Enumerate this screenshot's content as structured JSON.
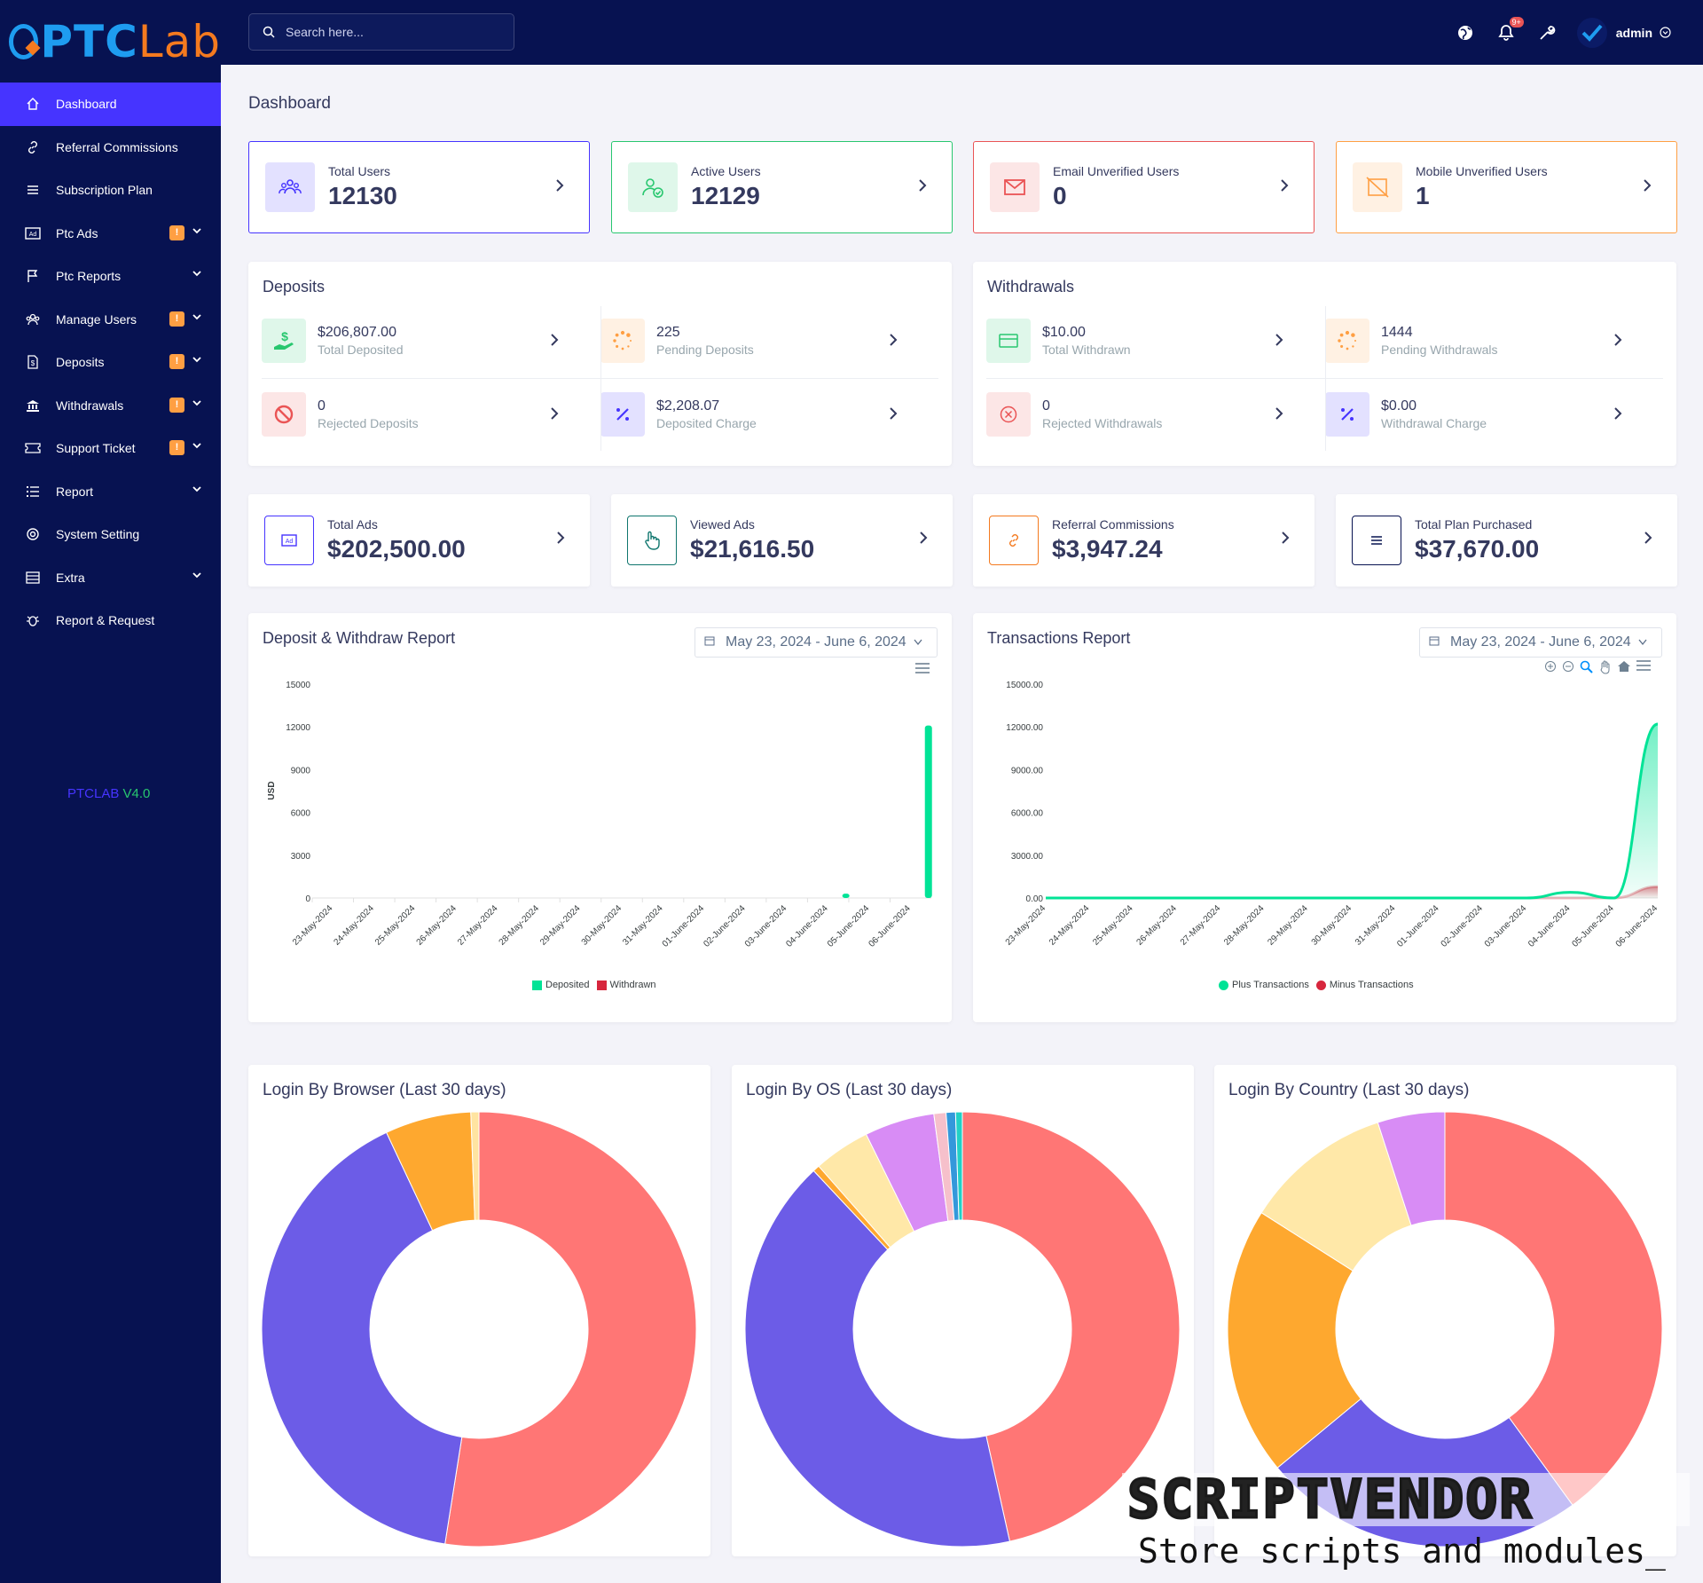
{
  "brand": {
    "logo_a": "PTC",
    "logo_b": "Lab",
    "version_a": "PTCLAB",
    "version_b": "V4.0"
  },
  "colors": {
    "sidebar": "#071251",
    "accent": "#4634ff",
    "success": "#28c76f",
    "danger": "#ea5455",
    "warning": "#ff9f43",
    "deposit_green": "#00e396",
    "withdraw_red": "#d7263d"
  },
  "sidebar": {
    "items": [
      {
        "label": "Dashboard",
        "icon": "home-icon",
        "badge": false,
        "dropdown": false,
        "active": true
      },
      {
        "label": "Referral Commissions",
        "icon": "link-icon",
        "badge": false,
        "dropdown": false
      },
      {
        "label": "Subscription Plan",
        "icon": "list-icon",
        "badge": false,
        "dropdown": false
      },
      {
        "label": "Ptc Ads",
        "icon": "ad-icon",
        "badge": true,
        "dropdown": true
      },
      {
        "label": "Ptc Reports",
        "icon": "flag-icon",
        "badge": false,
        "dropdown": true
      },
      {
        "label": "Manage Users",
        "icon": "users-icon",
        "badge": true,
        "dropdown": true
      },
      {
        "label": "Deposits",
        "icon": "deposit-icon",
        "badge": true,
        "dropdown": true
      },
      {
        "label": "Withdrawals",
        "icon": "bank-icon",
        "badge": true,
        "dropdown": true
      },
      {
        "label": "Support Ticket",
        "icon": "ticket-icon",
        "badge": true,
        "dropdown": true
      },
      {
        "label": "Report",
        "icon": "report-icon",
        "badge": false,
        "dropdown": true
      },
      {
        "label": "System Setting",
        "icon": "settings-icon",
        "badge": false,
        "dropdown": false
      },
      {
        "label": "Extra",
        "icon": "server-icon",
        "badge": false,
        "dropdown": true
      },
      {
        "label": "Report & Request",
        "icon": "bug-icon",
        "badge": false,
        "dropdown": false
      }
    ],
    "badge_text": "!"
  },
  "header": {
    "search_placeholder": "Search here...",
    "notification_count": "9+",
    "user": "admin"
  },
  "page": {
    "title": "Dashboard"
  },
  "widgets": [
    {
      "title": "Total Users",
      "value": "12130",
      "icon": "users-group-icon",
      "color": "#4634ff"
    },
    {
      "title": "Active Users",
      "value": "12129",
      "icon": "user-check-icon",
      "color": "#28c76f"
    },
    {
      "title": "Email Unverified Users",
      "value": "0",
      "icon": "envelope-icon",
      "color": "#ea5455"
    },
    {
      "title": "Mobile Unverified Users",
      "value": "1",
      "icon": "mobile-off-icon",
      "color": "#ff9f43"
    }
  ],
  "deposits": {
    "title": "Deposits",
    "stats": [
      {
        "value": "$206,807.00",
        "label": "Total Deposited",
        "icon": "hand-money-icon",
        "color": "#28c76f"
      },
      {
        "value": "225",
        "label": "Pending Deposits",
        "icon": "spinner-icon",
        "color": "#ff9f43"
      },
      {
        "value": "0",
        "label": "Rejected Deposits",
        "icon": "ban-icon",
        "color": "#ea5455"
      },
      {
        "value": "$2,208.07",
        "label": "Deposited Charge",
        "icon": "percent-icon",
        "color": "#4634ff"
      }
    ]
  },
  "withdrawals": {
    "title": "Withdrawals",
    "stats": [
      {
        "value": "$10.00",
        "label": "Total Withdrawn",
        "icon": "credit-card-icon",
        "color": "#28c76f"
      },
      {
        "value": "1444",
        "label": "Pending Withdrawals",
        "icon": "spinner-icon",
        "color": "#ff9f43"
      },
      {
        "value": "0",
        "label": "Rejected Withdrawals",
        "icon": "times-circle-icon",
        "color": "#ea5455"
      },
      {
        "value": "$0.00",
        "label": "Withdrawal Charge",
        "icon": "percent-icon",
        "color": "#4634ff"
      }
    ]
  },
  "widgets2": [
    {
      "title": "Total Ads",
      "value": "$202,500.00",
      "icon": "ad-icon",
      "color": "#4634ff"
    },
    {
      "title": "Viewed Ads",
      "value": "$21,616.50",
      "icon": "hand-pointer-icon",
      "color": "#0f766e"
    },
    {
      "title": "Referral Commissions",
      "value": "$3,947.24",
      "icon": "link-icon",
      "color": "#f47a1f"
    },
    {
      "title": "Total Plan Purchased",
      "value": "$37,670.00",
      "icon": "list-icon",
      "color": "#071251"
    }
  ],
  "deposit_report": {
    "title": "Deposit & Withdraw Report",
    "date_range": "May 23, 2024 - June 6, 2024"
  },
  "transactions_report": {
    "title": "Transactions Report",
    "date_range": "May 23, 2024 - June 6, 2024"
  },
  "pies": {
    "browser_title": "Login By Browser (Last 30 days)",
    "os_title": "Login By OS (Last 30 days)",
    "country_title": "Login By Country (Last 30 days)"
  },
  "watermark": {
    "title": "SCRIPTVENDOR",
    "subtitle": "Store scripts and modules_"
  },
  "chart_data": [
    {
      "type": "bar",
      "ylabel": "USD",
      "ylim": [
        0,
        15000
      ],
      "yticks": [
        "15000",
        "12000",
        "9000",
        "6000",
        "3000",
        "0"
      ],
      "categories": [
        "23-May-2024",
        "24-May-2024",
        "25-May-2024",
        "26-May-2024",
        "27-May-2024",
        "28-May-2024",
        "29-May-2024",
        "30-May-2024",
        "31-May-2024",
        "01-June-2024",
        "02-June-2024",
        "03-June-2024",
        "04-June-2024",
        "05-June-2024",
        "06-June-2024"
      ],
      "series": [
        {
          "name": "Deposited",
          "color": "#00e396",
          "values": [
            0,
            0,
            0,
            0,
            0,
            0,
            0,
            0,
            0,
            0,
            0,
            0,
            300,
            0,
            12100
          ]
        },
        {
          "name": "Withdrawn",
          "color": "#d7263d",
          "values": [
            0,
            0,
            0,
            0,
            0,
            0,
            0,
            0,
            0,
            0,
            0,
            0,
            0,
            0,
            0
          ]
        }
      ],
      "legend": "bottom"
    },
    {
      "type": "area",
      "ylim": [
        0,
        15000
      ],
      "yticks": [
        "15000.00",
        "12000.00",
        "9000.00",
        "6000.00",
        "3000.00",
        "0.00"
      ],
      "categories": [
        "23-May-2024",
        "24-May-2024",
        "25-May-2024",
        "26-May-2024",
        "27-May-2024",
        "28-May-2024",
        "29-May-2024",
        "30-May-2024",
        "31-May-2024",
        "01-June-2024",
        "02-June-2024",
        "03-June-2024",
        "04-June-2024",
        "05-June-2024",
        "06-June-2024"
      ],
      "series": [
        {
          "name": "Plus Transactions",
          "color": "#00e396",
          "values": [
            0,
            0,
            0,
            0,
            0,
            0,
            0,
            0,
            0,
            0,
            0,
            0,
            400,
            0,
            12200
          ]
        },
        {
          "name": "Minus Transactions",
          "color": "#d7263d",
          "values": [
            0,
            0,
            0,
            0,
            0,
            0,
            0,
            0,
            0,
            0,
            0,
            0,
            0,
            0,
            800
          ]
        }
      ],
      "legend": "bottom"
    },
    {
      "type": "pie",
      "donut": true,
      "slices": [
        {
          "value": 52.5,
          "color": "#ff7675"
        },
        {
          "value": 40.5,
          "color": "#6c5ce7"
        },
        {
          "value": 6.4,
          "color": "#fea82f"
        },
        {
          "value": 0.6,
          "color": "#ffe4a1"
        }
      ]
    },
    {
      "type": "pie",
      "donut": true,
      "slices": [
        {
          "value": 46.5,
          "color": "#ff7675"
        },
        {
          "value": 41.5,
          "color": "#6c5ce7"
        },
        {
          "value": 0.5,
          "color": "#fea82f"
        },
        {
          "value": 4.2,
          "color": "#ffe8a8"
        },
        {
          "value": 5.2,
          "color": "#d88cf5"
        },
        {
          "value": 0.9,
          "color": "#f6c0cb"
        },
        {
          "value": 0.7,
          "color": "#3498db"
        },
        {
          "value": 0.5,
          "color": "#22d1c6"
        }
      ]
    },
    {
      "type": "pie",
      "donut": true,
      "slices": [
        {
          "value": 40,
          "color": "#ff7675"
        },
        {
          "value": 24,
          "color": "#6c5ce7"
        },
        {
          "value": 20,
          "color": "#fea82f"
        },
        {
          "value": 11,
          "color": "#ffe8a8"
        },
        {
          "value": 5,
          "color": "#d88cf5"
        }
      ]
    }
  ]
}
